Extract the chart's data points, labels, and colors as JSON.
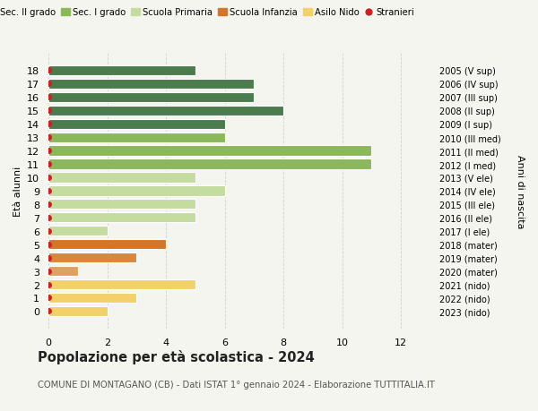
{
  "ages": [
    18,
    17,
    16,
    15,
    14,
    13,
    12,
    11,
    10,
    9,
    8,
    7,
    6,
    5,
    4,
    3,
    2,
    1,
    0
  ],
  "years": [
    "2005 (V sup)",
    "2006 (IV sup)",
    "2007 (III sup)",
    "2008 (II sup)",
    "2009 (I sup)",
    "2010 (III med)",
    "2011 (II med)",
    "2012 (I med)",
    "2013 (V ele)",
    "2014 (IV ele)",
    "2015 (III ele)",
    "2016 (II ele)",
    "2017 (I ele)",
    "2018 (mater)",
    "2019 (mater)",
    "2020 (mater)",
    "2021 (nido)",
    "2022 (nido)",
    "2023 (nido)"
  ],
  "values": [
    5,
    7,
    7,
    8,
    6,
    6,
    11,
    11,
    5,
    6,
    5,
    5,
    2,
    4,
    3,
    1,
    5,
    3,
    2
  ],
  "bar_colors": [
    "#4a7c4e",
    "#4a7c4e",
    "#4a7c4e",
    "#4a7c4e",
    "#4a7c4e",
    "#8ab85a",
    "#8ab85a",
    "#8ab85a",
    "#c5dca0",
    "#c5dca0",
    "#c5dca0",
    "#c5dca0",
    "#c5dca0",
    "#d4762a",
    "#d9873c",
    "#e0a060",
    "#f2d06a",
    "#f2d06a",
    "#f2d06a"
  ],
  "dot_color": "#cc2222",
  "ylabel_left": "Età alunni",
  "ylabel_right": "Anni di nascita",
  "title": "Popolazione per età scolastica - 2024",
  "subtitle": "COMUNE DI MONTAGANO (CB) - Dati ISTAT 1° gennaio 2024 - Elaborazione TUTTITALIA.IT",
  "xlim": [
    0,
    13
  ],
  "xticks": [
    0,
    2,
    4,
    6,
    8,
    10,
    12
  ],
  "legend_labels": [
    "Sec. II grado",
    "Sec. I grado",
    "Scuola Primaria",
    "Scuola Infanzia",
    "Asilo Nido",
    "Stranieri"
  ],
  "legend_colors": [
    "#4a7c4e",
    "#8ab85a",
    "#c5dca0",
    "#d4762a",
    "#f2d06a",
    "#cc2222"
  ],
  "legend_marker_types": [
    "bar",
    "bar",
    "bar",
    "bar",
    "bar",
    "dot"
  ],
  "background_color": "#f5f5f0",
  "bar_height": 0.75,
  "grid_color": "#d0d0c8"
}
